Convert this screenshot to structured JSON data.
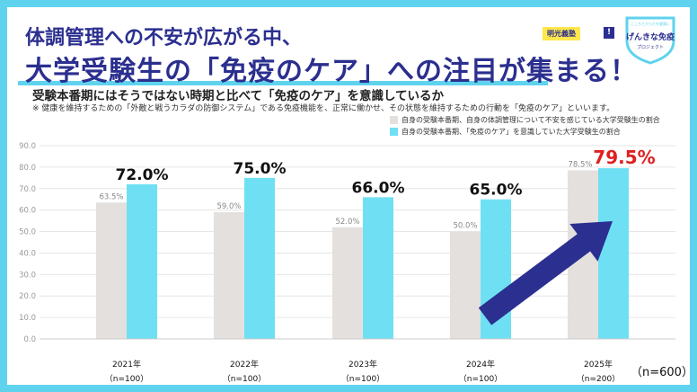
{
  "header": {
    "line1": "体調管理への不安が広がる中、",
    "line2": "大学受験生の「免疫のケア」への注目が集まる！",
    "badge": "明光義塾",
    "badge_mark": "!",
    "logo_name": "げんきな免疫",
    "logo_sub": "プロジェクト",
    "logo_arc": "こころとからだを健康に"
  },
  "subtitle": "受験本番期にはそうではない時期と比べて「免疫のケア」を意識しているか",
  "note": "※ 健康を維持するための「外敵と戦うカラダの防御システム」である免疫機能を、正常に働かせ、その状態を維持するための行動を「免疫のケア」といいます。",
  "total_n": "（n=600）",
  "colors": {
    "series1": "#e3e0de",
    "series2": "#6fe0f4",
    "accent": "#2b2f8f",
    "highlight": "#e02020",
    "frame": "#5fd3ee"
  },
  "chart_data": {
    "type": "bar",
    "title": "受験本番期にはそうではない時期と比べて「免疫のケア」を意識しているか",
    "categories": [
      "2021年",
      "2022年",
      "2023年",
      "2024年",
      "2025年"
    ],
    "category_n": [
      "（n=100）",
      "（n=100）",
      "（n=100）",
      "（n=100）",
      "（n=200）"
    ],
    "ylim": [
      0,
      90
    ],
    "yticks": [
      "0.0",
      "10.0",
      "20.0",
      "30.0",
      "40.0",
      "50.0",
      "60.0",
      "70.0",
      "80.0",
      "90.0"
    ],
    "grid": true,
    "legend_position": "top-right",
    "series": [
      {
        "name": "自身の受験本番期、自身の体調管理について不安を感じている大学受験生の割合",
        "values": [
          63.5,
          59.0,
          52.0,
          50.0,
          78.5
        ],
        "labels": [
          "63.5%",
          "59.0%",
          "52.0%",
          "50.0%",
          "78.5%"
        ]
      },
      {
        "name": "自身の受験本番期、「免疫のケア」を意識していた大学受験生の割合",
        "values": [
          72.0,
          75.0,
          66.0,
          65.0,
          79.5
        ],
        "labels": [
          "72.0%",
          "75.0%",
          "66.0%",
          "65.0%",
          "79.5%"
        ]
      }
    ],
    "annotations": [
      "trend-arrow"
    ]
  }
}
